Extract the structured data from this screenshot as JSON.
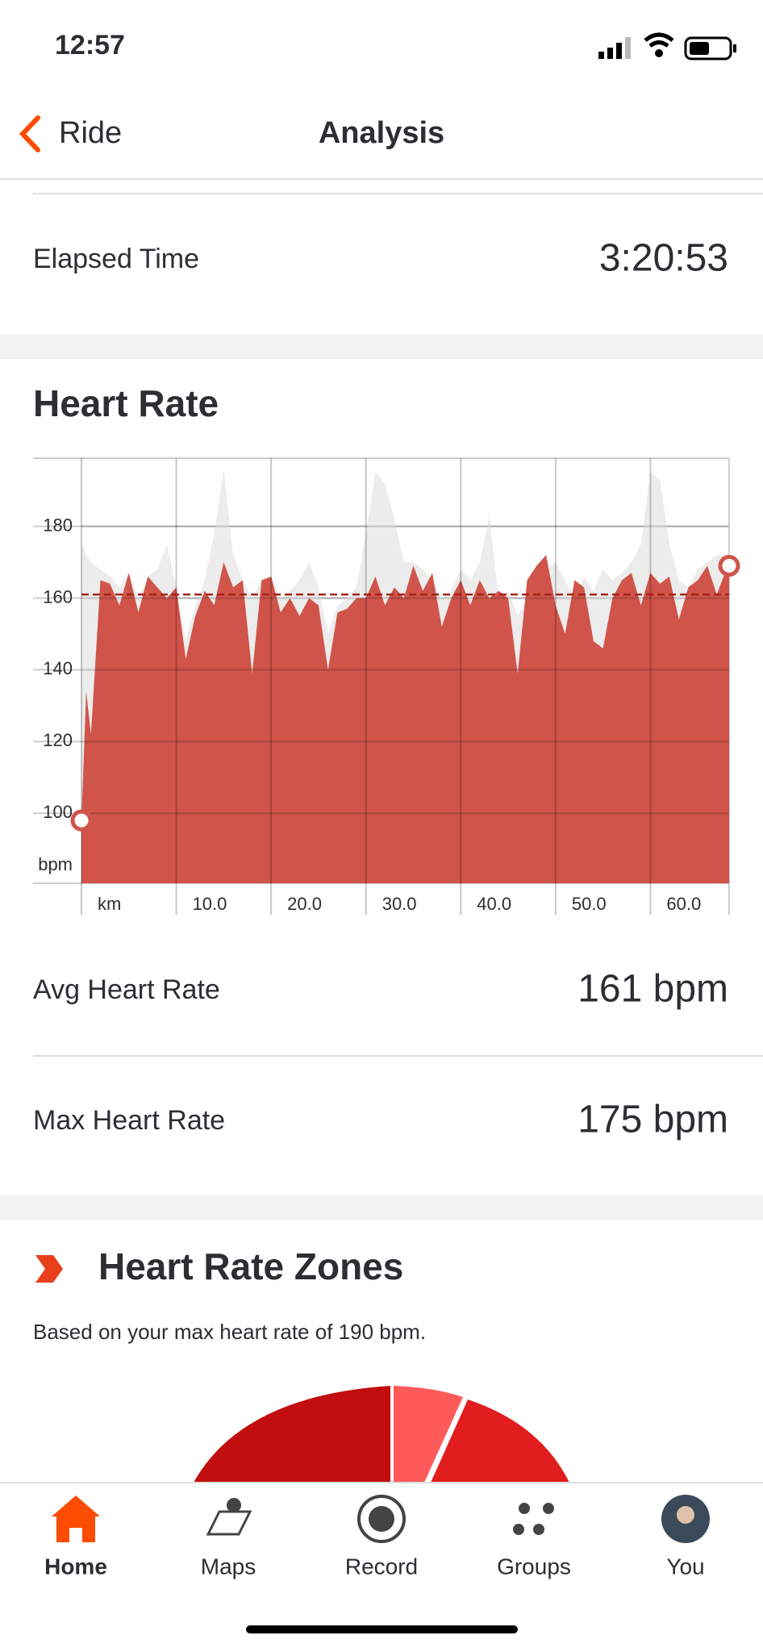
{
  "status": {
    "time": "12:57"
  },
  "nav": {
    "back": "Ride",
    "title": "Analysis"
  },
  "elapsed": {
    "label": "Elapsed Time",
    "value": "3:20:53"
  },
  "heart_rate": {
    "title": "Heart Rate"
  },
  "chart_data": {
    "type": "area",
    "y_label": "bpm",
    "xlim": [
      0,
      68.3
    ],
    "ylim": [
      80.5,
      199
    ],
    "xticks": [
      {
        "value": 0,
        "label": "km"
      },
      {
        "value": 10,
        "label": "10.0"
      },
      {
        "value": 20,
        "label": "20.0"
      },
      {
        "value": 30,
        "label": "30.0"
      },
      {
        "value": 40,
        "label": "40.0"
      },
      {
        "value": 50,
        "label": "50.0"
      },
      {
        "value": 60,
        "label": "60.0"
      }
    ],
    "yticks": [
      100,
      120,
      140,
      160,
      180
    ],
    "x": [
      0,
      0.5,
      1,
      2,
      3,
      4,
      5,
      6,
      7,
      8,
      9,
      10,
      11,
      12,
      13,
      14,
      15,
      16,
      17,
      18,
      19,
      20,
      21,
      22,
      23,
      24,
      25,
      26,
      27,
      28,
      29,
      30,
      31,
      32,
      33,
      34,
      35,
      36,
      37,
      38,
      39,
      40,
      41,
      42,
      43,
      44,
      45,
      46,
      47,
      48,
      49,
      50,
      51,
      52,
      53,
      54,
      55,
      56,
      57,
      58,
      59,
      60,
      61,
      62,
      63,
      64,
      65,
      66,
      67,
      68,
      68.3
    ],
    "series": [
      {
        "color": "#ececec",
        "values": [
          175,
          172,
          170,
          168,
          166,
          163,
          167,
          160,
          166,
          168,
          175,
          163,
          148,
          158,
          165,
          178,
          196,
          172,
          165,
          160,
          165,
          166,
          160,
          162,
          165,
          170,
          163,
          150,
          158,
          160,
          163,
          178,
          195,
          192,
          182,
          170,
          170,
          168,
          165,
          160,
          162,
          168,
          165,
          170,
          183,
          160,
          162,
          155,
          160,
          165,
          168,
          170,
          165,
          160,
          166,
          162,
          168,
          165,
          167,
          170,
          175,
          195,
          193,
          175,
          165,
          163,
          168,
          170,
          172,
          172,
          172
        ]
      },
      {
        "color": "#d0544a",
        "values": [
          98,
          134,
          122,
          165,
          164,
          158,
          167,
          156,
          166,
          163,
          160,
          163,
          143,
          155,
          162,
          158,
          170,
          163,
          165,
          139,
          165,
          166,
          156,
          160,
          155,
          160,
          158,
          140,
          156,
          157,
          160,
          160,
          166,
          158,
          163,
          160,
          169,
          162,
          167,
          152,
          160,
          165,
          158,
          165,
          160,
          162,
          160,
          139,
          165,
          169,
          172,
          158,
          150,
          165,
          163,
          148,
          146,
          160,
          165,
          167,
          158,
          167,
          164,
          166,
          154,
          163,
          165,
          169,
          161,
          168,
          169
        ]
      }
    ],
    "average": 161,
    "average_color": "#a3231c"
  },
  "stats": [
    {
      "label": "Avg Heart Rate",
      "value": "161 bpm"
    },
    {
      "label": "Max Heart Rate",
      "value": "175 bpm"
    }
  ],
  "zones": {
    "title": "Heart Rate Zones",
    "subtitle": "Based on your max heart rate of 190 bpm."
  },
  "tabs": [
    "Home",
    "Maps",
    "Record",
    "Groups",
    "You"
  ]
}
